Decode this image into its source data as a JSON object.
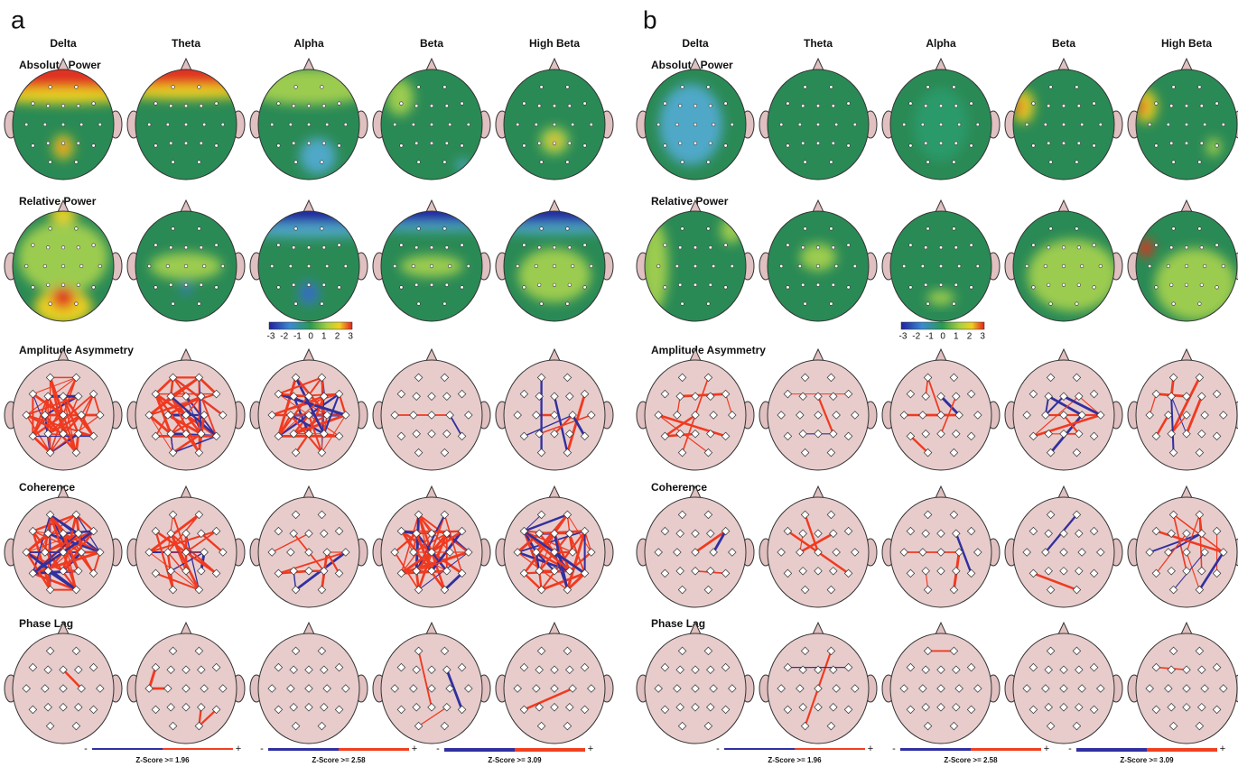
{
  "panels": [
    {
      "label": "a",
      "bands": [
        "Delta",
        "Theta",
        "Alpha",
        "Beta",
        "High Beta"
      ],
      "rows": [
        "Absolute Power",
        "Relative Power",
        "Amplitude Asymmetry",
        "Coherence",
        "Phase Lag"
      ],
      "colorbar_ticks": [
        -3,
        -2,
        -1,
        0,
        1,
        2,
        3
      ],
      "zscore_legends": [
        {
          "minus": "-",
          "plus": "+",
          "label": "Z-Score >= 1.96"
        },
        {
          "minus": "-",
          "plus": "+",
          "label": "Z-Score >= 2.58"
        },
        {
          "minus": "-",
          "plus": "+",
          "label": "Z-Score >= 3.09"
        }
      ]
    },
    {
      "label": "b",
      "bands": [
        "Delta",
        "Theta",
        "Alpha",
        "Beta",
        "High Beta"
      ],
      "rows": [
        "Absolute Power",
        "Relative Power",
        "Amplitude Asymmetry",
        "Coherence",
        "Phase Lag"
      ],
      "colorbar_ticks": [
        -3,
        -2,
        -1,
        0,
        1,
        2,
        3
      ],
      "zscore_legends": [
        {
          "minus": "-",
          "plus": "+",
          "label": "Z-Score >= 1.96"
        },
        {
          "minus": "-",
          "plus": "+",
          "label": "Z-Score >= 2.58"
        },
        {
          "minus": "-",
          "plus": "+",
          "label": "Z-Score >= 3.09"
        }
      ]
    }
  ]
}
